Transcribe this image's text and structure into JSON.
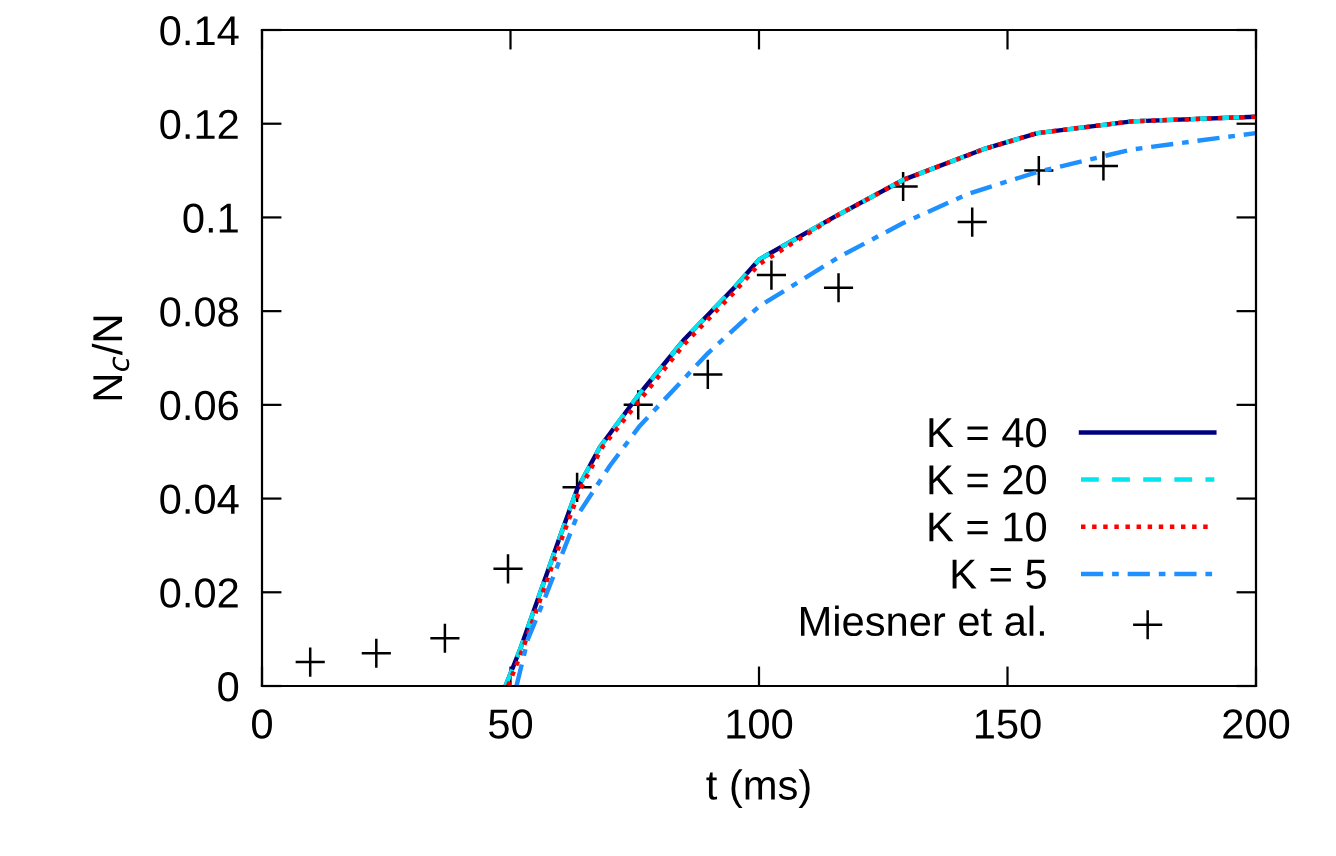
{
  "chart_data": {
    "type": "line",
    "xlabel": "t (ms)",
    "ylabel": "N$_{c}$/N",
    "xlim": [
      0,
      200
    ],
    "ylim": [
      0,
      0.14
    ],
    "xticks": [
      0,
      50,
      100,
      150,
      200
    ],
    "yticks": [
      0,
      0.02,
      0.04,
      0.06,
      0.08,
      0.1,
      0.12,
      0.14
    ],
    "grid": false,
    "legend": "bottom right",
    "series": [
      {
        "name": "K = 40",
        "color": "#000080",
        "line_style": "solid",
        "x": [
          49,
          52,
          56,
          60,
          63.4,
          68,
          75.7,
          85,
          95,
          100,
          115,
          129,
          145,
          156,
          175,
          200
        ],
        "values": [
          0,
          0.008,
          0.02,
          0.032,
          0.042,
          0.051,
          0.062,
          0.074,
          0.085,
          0.091,
          0.1,
          0.108,
          0.1145,
          0.118,
          0.1205,
          0.1215
        ]
      },
      {
        "name": "K = 20",
        "color": "#00e5ee",
        "line_style": "dashed",
        "x": [
          49,
          52,
          56,
          60,
          63.4,
          68,
          75.7,
          85,
          95,
          100,
          115,
          129,
          145,
          156,
          175,
          200
        ],
        "values": [
          0,
          0.008,
          0.02,
          0.032,
          0.042,
          0.051,
          0.062,
          0.074,
          0.085,
          0.091,
          0.1,
          0.108,
          0.1145,
          0.118,
          0.1205,
          0.1215
        ]
      },
      {
        "name": "K = 10",
        "color": "#ff0000",
        "line_style": "dotted",
        "x": [
          49.5,
          52.5,
          56.5,
          60.5,
          64,
          68.5,
          76,
          85,
          95,
          100,
          115,
          129,
          145,
          156,
          175,
          200
        ],
        "values": [
          0,
          0.008,
          0.02,
          0.032,
          0.042,
          0.051,
          0.061,
          0.073,
          0.084,
          0.09,
          0.1,
          0.108,
          0.1145,
          0.118,
          0.1205,
          0.1215
        ]
      },
      {
        "name": "K = 5",
        "color": "#1e90ff",
        "line_style": "dashdot",
        "x": [
          51.2,
          53.5,
          57,
          63.4,
          70,
          76,
          89.7,
          100,
          116,
          129,
          142,
          156,
          175,
          200
        ],
        "values": [
          0,
          0.01,
          0.019,
          0.0363,
          0.047,
          0.0555,
          0.071,
          0.081,
          0.0915,
          0.0988,
          0.105,
          0.1097,
          0.1145,
          0.118
        ]
      },
      {
        "name": "Miesner et al.",
        "type": "scatter",
        "color": "#000000",
        "marker": "cross",
        "x": [
          9.7,
          23,
          36.8,
          49.5,
          63.4,
          75.7,
          89.7,
          102.5,
          116,
          129,
          142.9,
          156.3,
          169.3
        ],
        "values": [
          0.0051,
          0.007,
          0.0102,
          0.025,
          0.0424,
          0.06,
          0.0665,
          0.0877,
          0.085,
          0.1066,
          0.099,
          0.11,
          0.111
        ]
      }
    ]
  }
}
